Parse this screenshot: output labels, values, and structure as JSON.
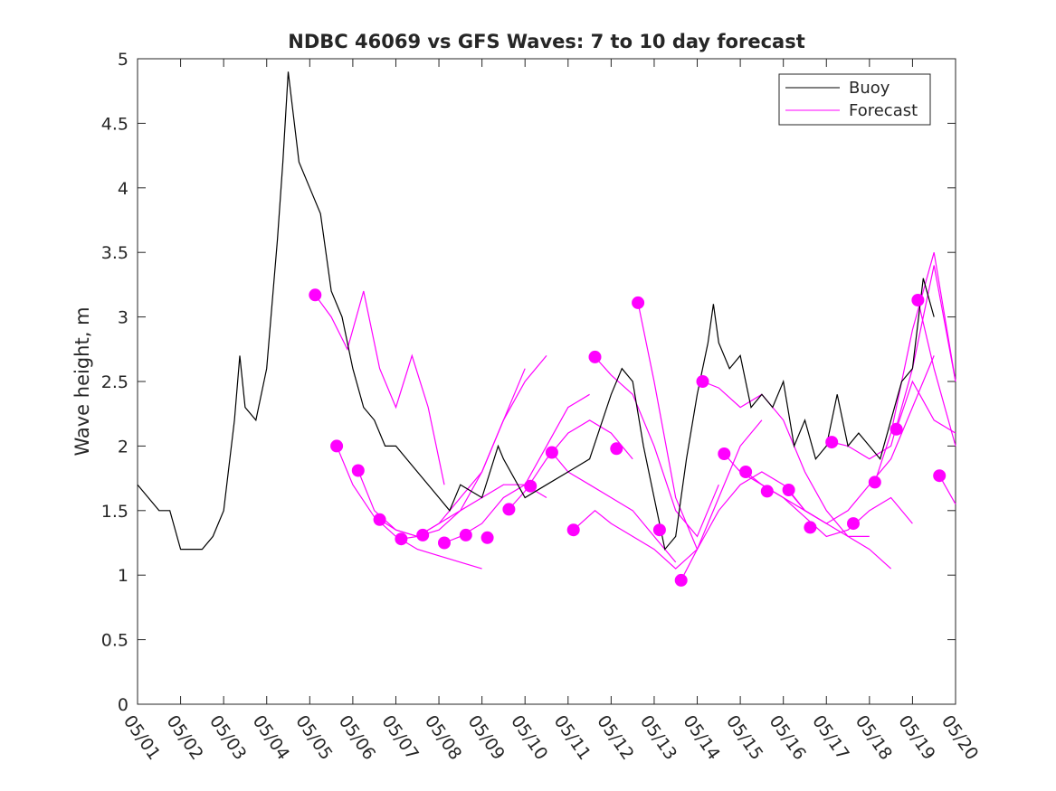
{
  "chart_data": {
    "type": "line",
    "title": "NDBC 46069 vs GFS Waves: 7 to 10 day forecast",
    "xlabel": "",
    "ylabel": "Wave height, m",
    "xlim": [
      "05/01",
      "05/20"
    ],
    "ylim": [
      0,
      5
    ],
    "x_ticks": [
      "05/01",
      "05/02",
      "05/03",
      "05/04",
      "05/05",
      "05/06",
      "05/07",
      "05/08",
      "05/09",
      "05/10",
      "05/11",
      "05/12",
      "05/13",
      "05/14",
      "05/15",
      "05/16",
      "05/17",
      "05/18",
      "05/19",
      "05/20"
    ],
    "y_ticks": [
      "0",
      "0.5",
      "1",
      "1.5",
      "2",
      "2.5",
      "3",
      "3.5",
      "4",
      "4.5",
      "5"
    ],
    "legend": {
      "position": "top-right",
      "entries": [
        {
          "label": "Buoy",
          "color": "#000000"
        },
        {
          "label": "Forecast",
          "color": "#ff00ff"
        }
      ]
    },
    "colors": {
      "buoy": "#000000",
      "forecast": "#ff00ff",
      "axis": "#262626"
    },
    "series": [
      {
        "name": "Buoy",
        "x": [
          "05/01 00:00",
          "05/01 12:00",
          "05/01 18:00",
          "05/02 00:00",
          "05/02 12:00",
          "05/02 18:00",
          "05/03 00:00",
          "05/03 06:00",
          "05/03 09:00",
          "05/03 12:00",
          "05/03 18:00",
          "05/04 00:00",
          "05/04 06:00",
          "05/04 09:00",
          "05/04 12:00",
          "05/04 18:00",
          "05/05 00:00",
          "05/05 06:00",
          "05/05 12:00",
          "05/05 18:00",
          "05/06 00:00",
          "05/06 06:00",
          "05/06 12:00",
          "05/06 18:00",
          "05/07 00:00",
          "05/07 12:00",
          "05/08 00:00",
          "05/08 06:00",
          "05/08 12:00",
          "05/09 00:00",
          "05/09 09:00",
          "05/09 12:00",
          "05/10 00:00",
          "05/10 12:00",
          "05/11 00:00",
          "05/11 12:00",
          "05/12 00:00",
          "05/12 06:00",
          "05/12 12:00",
          "05/12 18:00",
          "05/13 00:00",
          "05/13 06:00",
          "05/13 12:00",
          "05/13 18:00",
          "05/14 00:00",
          "05/14 06:00",
          "05/14 09:00",
          "05/14 12:00",
          "05/14 18:00",
          "05/15 00:00",
          "05/15 06:00",
          "05/15 12:00",
          "05/15 18:00",
          "05/16 00:00",
          "05/16 06:00",
          "05/16 12:00",
          "05/16 18:00",
          "05/17 00:00",
          "05/17 06:00",
          "05/17 12:00",
          "05/17 18:00",
          "05/18 00:00",
          "05/18 06:00",
          "05/18 12:00",
          "05/18 18:00",
          "05/19 00:00",
          "05/19 06:00",
          "05/19 12:00"
        ],
        "values": [
          1.7,
          1.5,
          1.5,
          1.2,
          1.2,
          1.3,
          1.5,
          2.2,
          2.7,
          2.3,
          2.2,
          2.6,
          3.6,
          4.2,
          4.9,
          4.2,
          4.0,
          3.8,
          3.2,
          3.0,
          2.6,
          2.3,
          2.2,
          2.0,
          2.0,
          1.8,
          1.6,
          1.5,
          1.7,
          1.6,
          2.0,
          1.9,
          1.6,
          1.7,
          1.8,
          1.9,
          2.4,
          2.6,
          2.5,
          2.0,
          1.6,
          1.2,
          1.3,
          1.9,
          2.4,
          2.8,
          3.1,
          2.8,
          2.6,
          2.7,
          2.3,
          2.4,
          2.3,
          2.5,
          2.0,
          2.2,
          1.9,
          2.0,
          2.4,
          2.0,
          2.1,
          2.0,
          1.9,
          2.2,
          2.5,
          2.6,
          3.3,
          3.0
        ]
      },
      {
        "name": "Forecast",
        "start_points": [
          {
            "x": "05/05 03:00",
            "y": 3.17
          },
          {
            "x": "05/05 15:00",
            "y": 2.0
          },
          {
            "x": "05/06 03:00",
            "y": 1.81
          },
          {
            "x": "05/06 15:00",
            "y": 1.43
          },
          {
            "x": "05/07 03:00",
            "y": 1.28
          },
          {
            "x": "05/07 15:00",
            "y": 1.31
          },
          {
            "x": "05/08 03:00",
            "y": 1.25
          },
          {
            "x": "05/08 15:00",
            "y": 1.31
          },
          {
            "x": "05/09 03:00",
            "y": 1.29
          },
          {
            "x": "05/09 15:00",
            "y": 1.51
          },
          {
            "x": "05/10 03:00",
            "y": 1.69
          },
          {
            "x": "05/10 15:00",
            "y": 1.95
          },
          {
            "x": "05/11 03:00",
            "y": 1.35
          },
          {
            "x": "05/11 15:00",
            "y": 2.69
          },
          {
            "x": "05/12 03:00",
            "y": 1.98
          },
          {
            "x": "05/12 15:00",
            "y": 3.11
          },
          {
            "x": "05/13 03:00",
            "y": 1.35
          },
          {
            "x": "05/13 15:00",
            "y": 0.96
          },
          {
            "x": "05/14 03:00",
            "y": 2.5
          },
          {
            "x": "05/14 15:00",
            "y": 1.94
          },
          {
            "x": "05/15 03:00",
            "y": 1.8
          },
          {
            "x": "05/15 15:00",
            "y": 1.65
          },
          {
            "x": "05/16 03:00",
            "y": 1.66
          },
          {
            "x": "05/16 15:00",
            "y": 1.37
          },
          {
            "x": "05/17 03:00",
            "y": 2.03
          },
          {
            "x": "05/17 15:00",
            "y": 1.4
          },
          {
            "x": "05/18 03:00",
            "y": 1.72
          },
          {
            "x": "05/18 15:00",
            "y": 2.13
          },
          {
            "x": "05/19 03:00",
            "y": 3.13
          },
          {
            "x": "05/19 15:00",
            "y": 1.77
          }
        ],
        "traces": [
          {
            "x": [
              "05/05 03:00",
              "05/05 12:00",
              "05/05 21:00",
              "05/06 06:00",
              "05/06 15:00",
              "05/07 00:00",
              "05/07 09:00",
              "05/07 18:00",
              "05/08 03:00"
            ],
            "values": [
              3.17,
              3.0,
              2.75,
              3.2,
              2.6,
              2.3,
              2.7,
              2.3,
              1.7
            ]
          },
          {
            "x": [
              "05/05 15:00",
              "05/06 00:00",
              "05/06 12:00",
              "05/07 00:00",
              "05/07 12:00",
              "05/08 00:00",
              "05/08 12:00",
              "05/09 00:00"
            ],
            "values": [
              2.0,
              1.7,
              1.45,
              1.3,
              1.2,
              1.15,
              1.1,
              1.05
            ]
          },
          {
            "x": [
              "05/06 03:00",
              "05/06 12:00",
              "05/07 00:00",
              "05/07 12:00",
              "05/08 00:00",
              "05/08 12:00",
              "05/09 00:00",
              "05/09 12:00",
              "05/10 00:00"
            ],
            "values": [
              1.81,
              1.5,
              1.35,
              1.3,
              1.4,
              1.6,
              1.8,
              2.2,
              2.6
            ]
          },
          {
            "x": [
              "05/06 15:00",
              "05/07 00:00",
              "05/07 12:00",
              "05/08 00:00",
              "05/08 12:00",
              "05/09 00:00",
              "05/09 12:00",
              "05/10 00:00",
              "05/10 12:00"
            ],
            "values": [
              1.43,
              1.35,
              1.3,
              1.35,
              1.5,
              1.8,
              2.2,
              2.5,
              2.7
            ]
          },
          {
            "x": [
              "05/07 03:00",
              "05/07 12:00",
              "05/08 00:00",
              "05/08 12:00",
              "05/09 00:00",
              "05/09 12:00",
              "05/10 00:00",
              "05/10 12:00"
            ],
            "values": [
              1.28,
              1.3,
              1.4,
              1.5,
              1.6,
              1.7,
              1.7,
              1.6
            ]
          },
          {
            "x": [
              "05/08 03:00",
              "05/08 12:00",
              "05/09 00:00",
              "05/09 12:00",
              "05/10 00:00",
              "05/10 12:00",
              "05/11 00:00",
              "05/11 12:00"
            ],
            "values": [
              1.25,
              1.3,
              1.4,
              1.6,
              1.7,
              2.0,
              2.3,
              2.4
            ]
          },
          {
            "x": [
              "05/09 15:00",
              "05/10 00:00",
              "05/10 12:00",
              "05/11 00:00",
              "05/11 12:00",
              "05/12 00:00",
              "05/12 12:00"
            ],
            "values": [
              1.51,
              1.65,
              1.9,
              2.1,
              2.2,
              2.1,
              1.9
            ]
          },
          {
            "x": [
              "05/10 15:00",
              "05/11 00:00",
              "05/11 12:00",
              "05/12 00:00",
              "05/12 12:00",
              "05/13 00:00",
              "05/13 12:00"
            ],
            "values": [
              1.95,
              1.8,
              1.7,
              1.6,
              1.5,
              1.3,
              1.1
            ]
          },
          {
            "x": [
              "05/11 03:00",
              "05/11 15:00",
              "05/12 00:00",
              "05/12 12:00",
              "05/13 00:00",
              "05/13 12:00",
              "05/14 00:00"
            ],
            "values": [
              1.35,
              1.5,
              1.4,
              1.3,
              1.2,
              1.05,
              1.2
            ]
          },
          {
            "x": [
              "05/11 15:00",
              "05/12 00:00",
              "05/12 12:00",
              "05/13 00:00",
              "05/13 12:00",
              "05/14 00:00",
              "05/14 12:00"
            ],
            "values": [
              2.69,
              2.55,
              2.4,
              2.0,
              1.5,
              1.3,
              1.7
            ]
          },
          {
            "x": [
              "05/12 15:00",
              "05/13 00:00",
              "05/13 12:00",
              "05/14 00:00",
              "05/14 12:00",
              "05/15 00:00",
              "05/15 12:00"
            ],
            "values": [
              3.11,
              2.5,
              1.6,
              1.2,
              1.6,
              2.0,
              2.2
            ]
          },
          {
            "x": [
              "05/13 15:00",
              "05/14 00:00",
              "05/14 12:00",
              "05/15 00:00",
              "05/15 12:00",
              "05/16 00:00",
              "05/16 12:00",
              "05/17 00:00"
            ],
            "values": [
              0.96,
              1.2,
              1.5,
              1.7,
              1.8,
              1.7,
              1.5,
              1.4
            ]
          },
          {
            "x": [
              "05/14 03:00",
              "05/14 12:00",
              "05/15 00:00",
              "05/15 12:00",
              "05/16 00:00",
              "05/16 12:00",
              "05/17 00:00",
              "05/17 12:00",
              "05/18 00:00"
            ],
            "values": [
              2.5,
              2.45,
              2.3,
              2.4,
              2.2,
              1.8,
              1.5,
              1.3,
              1.3
            ]
          },
          {
            "x": [
              "05/14 15:00",
              "05/15 00:00",
              "05/15 12:00",
              "05/16 00:00",
              "05/16 12:00",
              "05/17 00:00",
              "05/17 12:00",
              "05/18 00:00",
              "05/18 12:00"
            ],
            "values": [
              1.94,
              1.8,
              1.7,
              1.6,
              1.5,
              1.4,
              1.3,
              1.2,
              1.05
            ]
          },
          {
            "x": [
              "05/15 03:00",
              "05/15 12:00",
              "05/16 00:00",
              "05/16 12:00",
              "05/17 00:00",
              "05/17 12:00",
              "05/18 00:00",
              "05/18 12:00",
              "05/19 00:00"
            ],
            "values": [
              1.8,
              1.7,
              1.6,
              1.45,
              1.3,
              1.35,
              1.5,
              1.6,
              1.4
            ]
          },
          {
            "x": [
              "05/16 03:00",
              "05/16 12:00",
              "05/17 00:00",
              "05/17 12:00",
              "05/18 00:00",
              "05/18 12:00",
              "05/19 00:00",
              "05/19 12:00"
            ],
            "values": [
              1.66,
              1.5,
              1.4,
              1.5,
              1.7,
              1.9,
              2.3,
              2.7
            ]
          },
          {
            "x": [
              "05/17 03:00",
              "05/17 12:00",
              "05/18 00:00",
              "05/18 12:00",
              "05/19 00:00",
              "05/19 12:00",
              "05/20 00:00"
            ],
            "values": [
              2.03,
              2.0,
              1.9,
              2.0,
              2.6,
              3.4,
              2.5
            ]
          },
          {
            "x": [
              "05/18 03:00",
              "05/18 12:00",
              "05/19 00:00",
              "05/19 12:00",
              "05/20 00:00"
            ],
            "values": [
              1.72,
              2.1,
              2.9,
              3.5,
              2.5
            ]
          },
          {
            "x": [
              "05/18 15:00",
              "05/19 00:00",
              "05/19 12:00",
              "05/20 00:00"
            ],
            "values": [
              2.13,
              2.5,
              2.2,
              2.1
            ]
          },
          {
            "x": [
              "05/19 03:00",
              "05/19 12:00",
              "05/20 00:00"
            ],
            "values": [
              3.13,
              2.6,
              2.0
            ]
          },
          {
            "x": [
              "05/19 15:00",
              "05/20 00:00"
            ],
            "values": [
              1.77,
              1.55
            ]
          }
        ]
      }
    ]
  }
}
